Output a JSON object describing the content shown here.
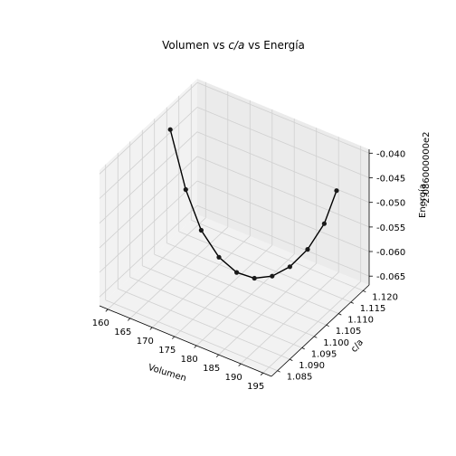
{
  "chart_data": {
    "type": "line",
    "title_parts": [
      "Volumen vs ",
      "c/a",
      " vs Energía"
    ],
    "xlabel": "Volumen",
    "ylabel": "c/a",
    "zlabel": "Energía",
    "z_offset_text": "-2.086000000e2",
    "xlim": [
      158.1,
      196.9
    ],
    "ylim": [
      1.0825,
      1.1225
    ],
    "zlim": [
      -0.0668,
      -0.0392
    ],
    "xticks": [
      "160",
      "165",
      "170",
      "175",
      "180",
      "185",
      "190",
      "195"
    ],
    "yticks": [
      "1.085",
      "1.090",
      "1.095",
      "1.100",
      "1.105",
      "1.110",
      "1.115",
      "1.120"
    ],
    "zticks": [
      "-0.065",
      "-0.060",
      "-0.055",
      "-0.050",
      "-0.045",
      "-0.040"
    ],
    "grid": true,
    "line_color": "#000000",
    "points": [
      {
        "x": 160.0,
        "y": 1.108,
        "z": -0.0421
      },
      {
        "x": 163.5,
        "y": 1.108,
        "z": -0.053
      },
      {
        "x": 167.0,
        "y": 1.108,
        "z": -0.06
      },
      {
        "x": 171.0,
        "y": 1.108,
        "z": -0.064
      },
      {
        "x": 175.0,
        "y": 1.108,
        "z": -0.0656
      },
      {
        "x": 179.0,
        "y": 1.108,
        "z": -0.0653
      },
      {
        "x": 183.0,
        "y": 1.108,
        "z": -0.0634
      },
      {
        "x": 187.0,
        "y": 1.108,
        "z": -0.06
      },
      {
        "x": 191.0,
        "y": 1.108,
        "z": -0.055
      },
      {
        "x": 194.5,
        "y": 1.1085,
        "z": -0.0487
      },
      {
        "x": 197.0,
        "y": 1.109,
        "z": -0.0413
      }
    ]
  }
}
